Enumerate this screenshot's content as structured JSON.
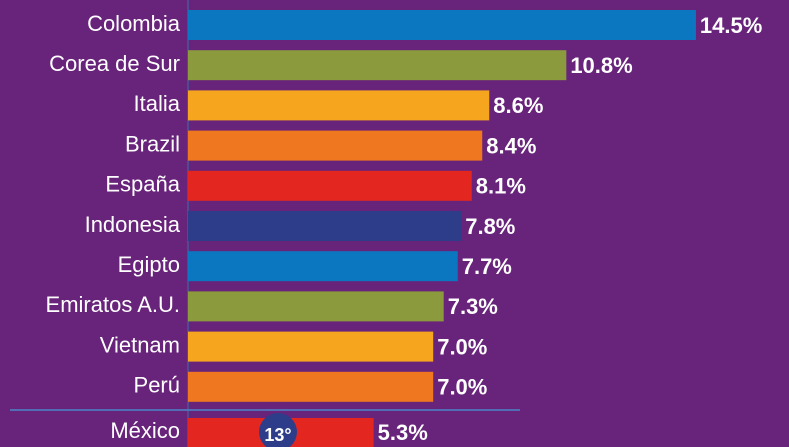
{
  "chart_data": {
    "type": "bar",
    "orientation": "horizontal",
    "categories": [
      "Colombia",
      "Corea de Sur",
      "Italia",
      "Brazil",
      "España",
      "Indonesia",
      "Egipto",
      "Emiratos A.U.",
      "Vietnam",
      "Perú",
      "México"
    ],
    "values": [
      14.5,
      10.8,
      8.6,
      8.4,
      8.1,
      7.8,
      7.7,
      7.3,
      7.0,
      7.0,
      5.3
    ],
    "value_labels": [
      "14.5%",
      "10.8%",
      "8.6%",
      "8.4%",
      "8.1%",
      "7.8%",
      "7.7%",
      "7.3%",
      "7.0%",
      "7.0%",
      "5.3%"
    ],
    "colors": [
      "#0a77c0",
      "#8a9a3c",
      "#f5a61e",
      "#ef771f",
      "#e3261f",
      "#2e3d8a",
      "#0a77c0",
      "#8a9a3c",
      "#f5a61e",
      "#ef771f",
      "#e3261f"
    ],
    "annotation": "13°"
  }
}
